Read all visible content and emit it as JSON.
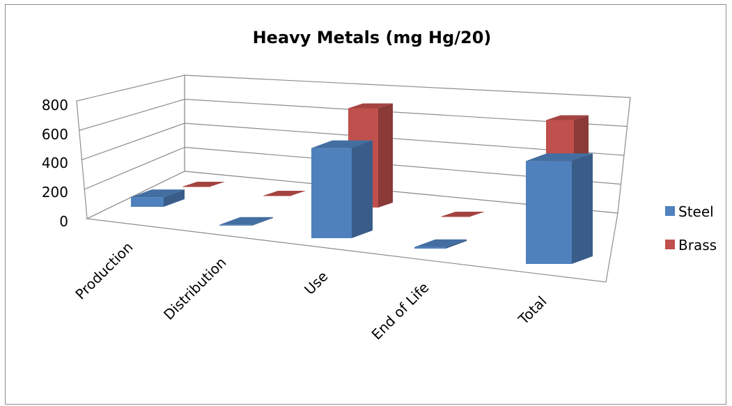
{
  "chart_data": {
    "type": "bar",
    "variant": "3d-clustered-column",
    "title": "Heavy Metals (mg Hg/20)",
    "xlabel": "",
    "ylabel": "",
    "categories": [
      "Production",
      "Distribution",
      "Use",
      "End of Life",
      "Total"
    ],
    "series": [
      {
        "name": "Steel",
        "values": [
          60,
          5,
          560,
          10,
          640
        ],
        "color": "#4F81BD"
      },
      {
        "name": "Brass",
        "values": [
          0,
          0,
          570,
          0,
          630
        ],
        "color": "#C0504D"
      }
    ],
    "yticks": [
      "0",
      "200",
      "400",
      "600",
      "800"
    ],
    "ylim": [
      0,
      800
    ],
    "grid": true,
    "legend": "right"
  }
}
